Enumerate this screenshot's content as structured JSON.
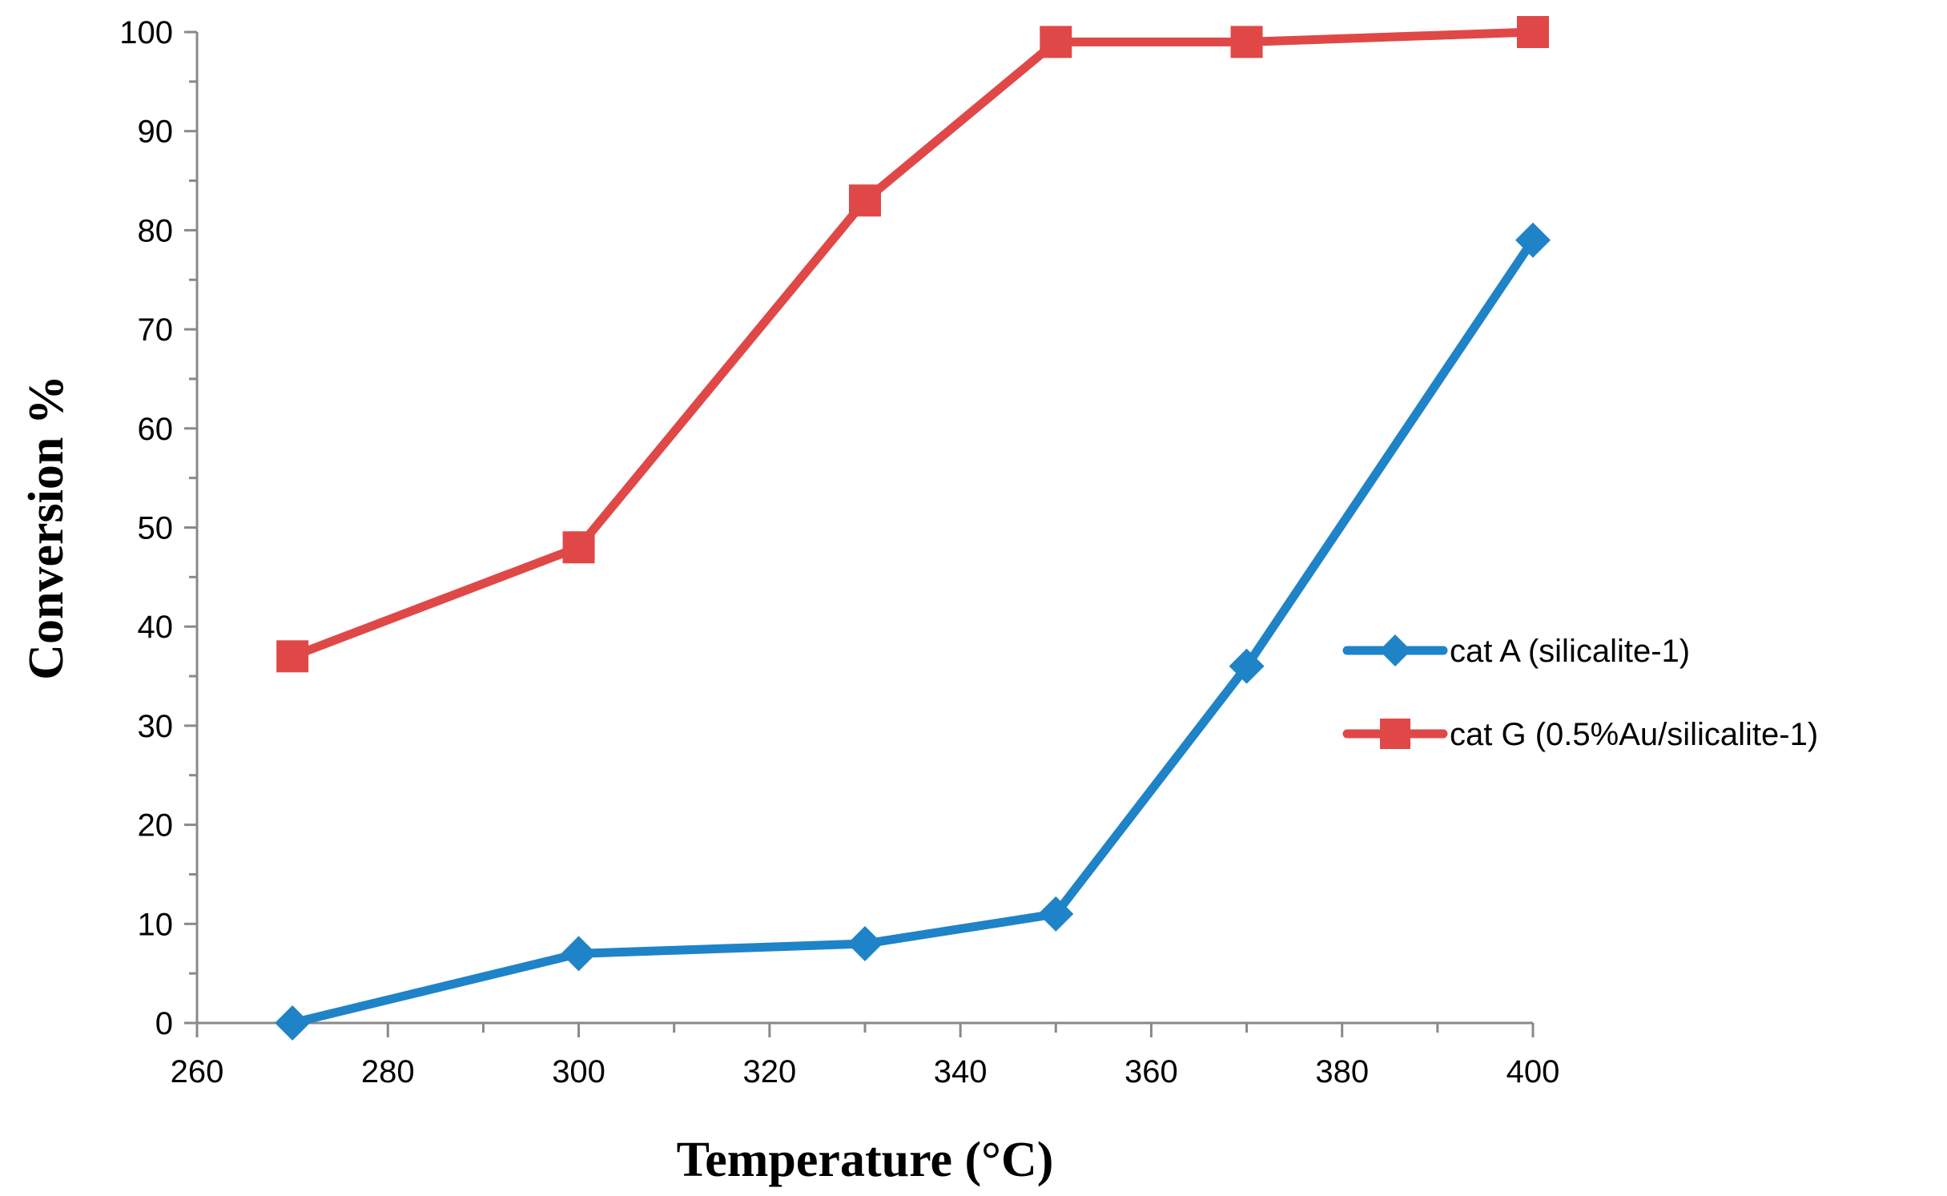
{
  "chart_data": {
    "type": "line",
    "title": "",
    "xlabel": "Temperature (°C)",
    "ylabel": "Conversion %",
    "xlim": [
      260,
      400
    ],
    "ylim": [
      0,
      100
    ],
    "x_major_step": 20,
    "x_minor_step": 10,
    "y_major_step": 10,
    "y_minor_step": 5,
    "grid": false,
    "legend_position": "right",
    "x_ticks": [
      "260",
      "280",
      "300",
      "320",
      "340",
      "360",
      "380",
      "400"
    ],
    "y_ticks": [
      "0",
      "10",
      "20",
      "30",
      "40",
      "50",
      "60",
      "70",
      "80",
      "90",
      "100"
    ],
    "series": [
      {
        "name": "cat A (silicalite-1)",
        "color": "#1f83c8",
        "marker": "diamond",
        "x": [
          270,
          300,
          330,
          350,
          370,
          400
        ],
        "values": [
          0,
          7,
          8,
          11,
          36,
          79
        ]
      },
      {
        "name": "cat G (0.5%Au/silicalite-1)",
        "color": "#e04848",
        "marker": "square",
        "x": [
          270,
          300,
          330,
          350,
          370,
          400
        ],
        "values": [
          37,
          48,
          83,
          99,
          99,
          100
        ]
      }
    ]
  }
}
